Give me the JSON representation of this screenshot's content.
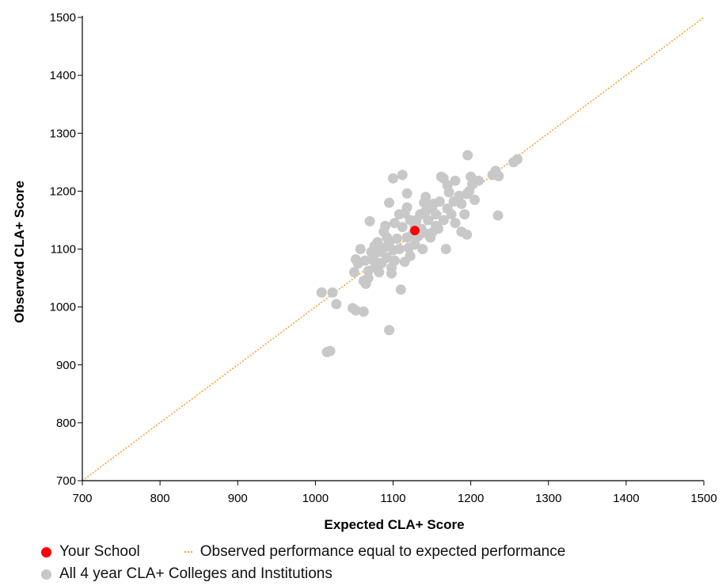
{
  "chart_data": {
    "type": "scatter",
    "title": "",
    "xlabel": "Expected CLA+ Score",
    "ylabel": "Observed CLA+ Score",
    "xlim": [
      700,
      1500
    ],
    "ylim": [
      700,
      1500
    ],
    "xticks": [
      "700",
      "800",
      "900",
      "1000",
      "1100",
      "1200",
      "1300",
      "1400",
      "1500"
    ],
    "yticks": [
      "700",
      "800",
      "900",
      "1000",
      "1100",
      "1200",
      "1300",
      "1400",
      "1500"
    ],
    "grid": false,
    "legend_position": "bottom",
    "reference_line": {
      "name": "Observed performance equal to expected performance",
      "x": [
        700,
        1500
      ],
      "y": [
        700,
        1500
      ],
      "color": "#ff9a2e",
      "style": "dotted"
    },
    "series": [
      {
        "name": "All 4 year CLA+ Colleges and Institutions",
        "color": "#c8c8c8",
        "points": [
          [
            1015,
            922
          ],
          [
            1019,
            924
          ],
          [
            1008,
            1025
          ],
          [
            1022,
            1025
          ],
          [
            1027,
            1005
          ],
          [
            1048,
            998
          ],
          [
            1052,
            994
          ],
          [
            1062,
            992
          ],
          [
            1050,
            1060
          ],
          [
            1055,
            1075
          ],
          [
            1052,
            1082
          ],
          [
            1058,
            1100
          ],
          [
            1062,
            1045
          ],
          [
            1065,
            1040
          ],
          [
            1068,
            1062
          ],
          [
            1068,
            1050
          ],
          [
            1072,
            1095
          ],
          [
            1075,
            1085
          ],
          [
            1075,
            1080
          ],
          [
            1070,
            1148
          ],
          [
            1078,
            1068
          ],
          [
            1080,
            1112
          ],
          [
            1082,
            1060
          ],
          [
            1085,
            1075
          ],
          [
            1085,
            1095
          ],
          [
            1088,
            1102
          ],
          [
            1090,
            1140
          ],
          [
            1092,
            1120
          ],
          [
            1092,
            1085
          ],
          [
            1095,
            1110
          ],
          [
            1095,
            960
          ],
          [
            1095,
            1180
          ],
          [
            1098,
            1058
          ],
          [
            1098,
            1068
          ],
          [
            1100,
            1222
          ],
          [
            1100,
            1098
          ],
          [
            1102,
            1080
          ],
          [
            1105,
            1118
          ],
          [
            1108,
            1160
          ],
          [
            1108,
            1100
          ],
          [
            1110,
            1030
          ],
          [
            1112,
            1138
          ],
          [
            1112,
            1228
          ],
          [
            1115,
            1078
          ],
          [
            1115,
            1162
          ],
          [
            1118,
            1196
          ],
          [
            1118,
            1120
          ],
          [
            1120,
            1102
          ],
          [
            1122,
            1150
          ],
          [
            1122,
            1088
          ],
          [
            1125,
            1125
          ],
          [
            1128,
            1140
          ],
          [
            1130,
            1150
          ],
          [
            1132,
            1122
          ],
          [
            1135,
            1160
          ],
          [
            1136,
            1135
          ],
          [
            1138,
            1100
          ],
          [
            1140,
            1180
          ],
          [
            1142,
            1165
          ],
          [
            1142,
            1190
          ],
          [
            1145,
            1150
          ],
          [
            1148,
            1120
          ],
          [
            1150,
            1170
          ],
          [
            1152,
            1178
          ],
          [
            1155,
            1140
          ],
          [
            1155,
            1160
          ],
          [
            1158,
            1135
          ],
          [
            1160,
            1182
          ],
          [
            1162,
            1225
          ],
          [
            1165,
            1222
          ],
          [
            1165,
            1150
          ],
          [
            1168,
            1100
          ],
          [
            1170,
            1210
          ],
          [
            1170,
            1170
          ],
          [
            1172,
            1198
          ],
          [
            1175,
            1160
          ],
          [
            1178,
            1182
          ],
          [
            1180,
            1145
          ],
          [
            1180,
            1218
          ],
          [
            1185,
            1192
          ],
          [
            1188,
            1130
          ],
          [
            1188,
            1178
          ],
          [
            1192,
            1160
          ],
          [
            1195,
            1125
          ],
          [
            1195,
            1195
          ],
          [
            1196,
            1262
          ],
          [
            1198,
            1200
          ],
          [
            1200,
            1225
          ],
          [
            1202,
            1212
          ],
          [
            1205,
            1185
          ],
          [
            1210,
            1218
          ],
          [
            1228,
            1228
          ],
          [
            1232,
            1235
          ],
          [
            1235,
            1158
          ],
          [
            1236,
            1226
          ],
          [
            1255,
            1250
          ],
          [
            1260,
            1255
          ],
          [
            1088,
            1130
          ],
          [
            1102,
            1145
          ],
          [
            1128,
            1108
          ],
          [
            1150,
            1128
          ],
          [
            1076,
            1105
          ],
          [
            1064,
            1080
          ],
          [
            1118,
            1172
          ],
          [
            1140,
            1128
          ]
        ]
      },
      {
        "name": "Your School",
        "color": "#ff0000",
        "points": [
          [
            1128,
            1132
          ]
        ]
      }
    ]
  }
}
